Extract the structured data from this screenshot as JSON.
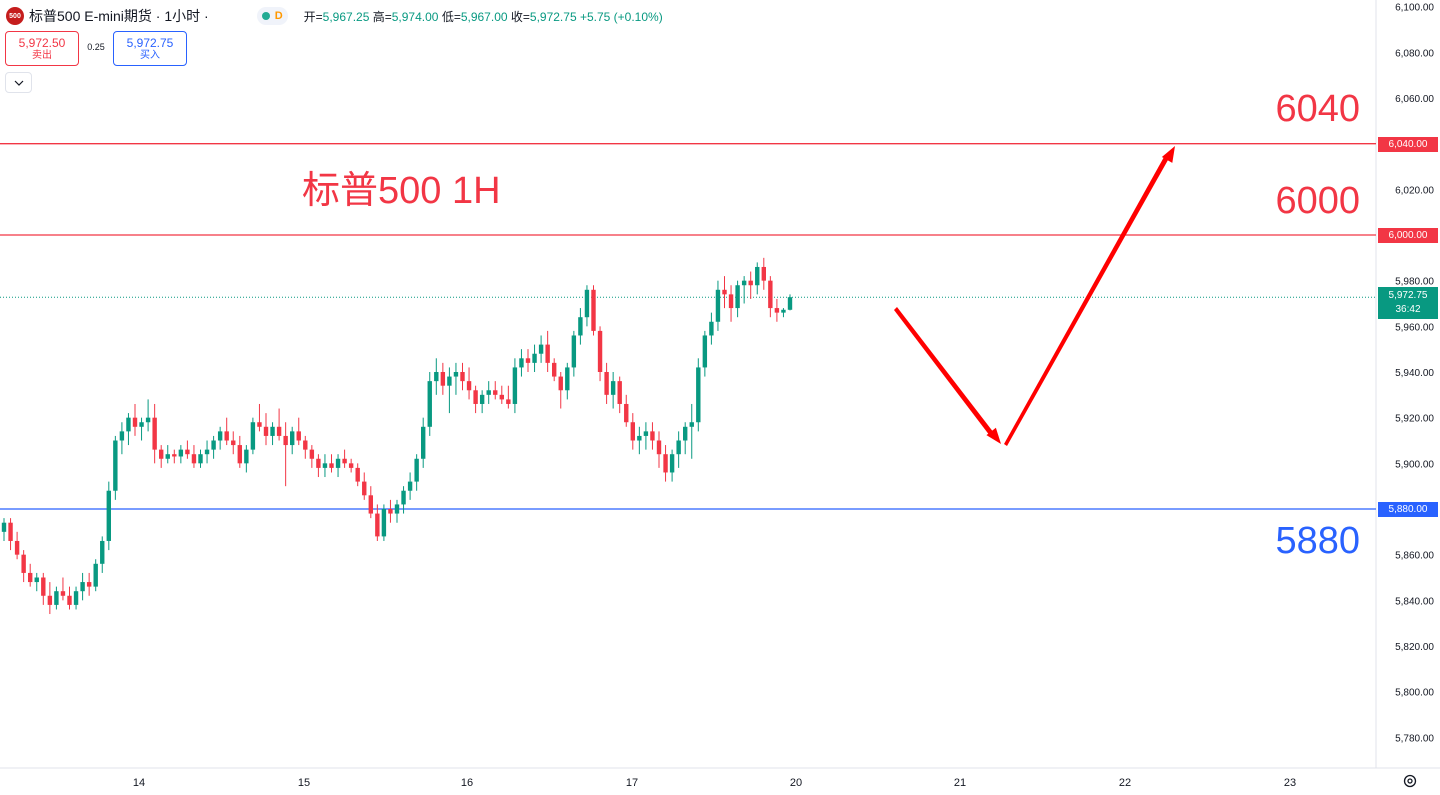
{
  "header": {
    "logo_text": "500",
    "symbol_title": "标普500 E-mini期货 · 1小时 ·",
    "status_letter": "D",
    "open_label": "开=",
    "open": "5,967.25",
    "high_label": "高=",
    "high": "5,974.00",
    "low_label": "低=",
    "low": "5,967.00",
    "close_label": "收=",
    "close": "5,972.75",
    "change": "+5.75 (+0.10%)"
  },
  "trade": {
    "sell_price": "5,972.50",
    "sell_label": "卖出",
    "spread": "0.25",
    "buy_price": "5,972.75",
    "buy_label": "买入"
  },
  "icons": {
    "collapse": "chevron-down-icon",
    "settings": "gear-icon",
    "arrows": "arrow-icon"
  },
  "colors": {
    "up": "#089981",
    "down": "#f23645",
    "resistance": "#f23645",
    "support": "#2962ff",
    "arrow": "#ff0000"
  },
  "annotations": {
    "title": "标普500 1H",
    "level_high": "6040",
    "level_mid": "6000",
    "level_low": "5880"
  },
  "price_tags": {
    "r2": "6,040.00",
    "r1": "6,000.00",
    "s1": "5,880.00",
    "current": "5,972.75",
    "countdown": "36:42"
  },
  "chart_data": {
    "type": "candlestick",
    "timeframe": "1H",
    "y_axis": {
      "range": [
        5770,
        6100
      ],
      "ticks": [
        6100,
        6080,
        6060,
        6040,
        6020,
        6000,
        5980,
        5960,
        5940,
        5920,
        5900,
        5880,
        5860,
        5840,
        5820,
        5800,
        5780
      ],
      "tick_labels": [
        "6,100.00",
        "6,080.00",
        "6,060.00",
        "6,040.00",
        "6,020.00",
        "6,000.00",
        "5,980.00",
        "5,960.00",
        "5,940.00",
        "5,920.00",
        "5,900.00",
        "5,880.00",
        "5,860.00",
        "5,840.00",
        "5,820.00",
        "5,800.00",
        "5,780.00"
      ]
    },
    "x_axis": {
      "labels": [
        "14",
        "15",
        "16",
        "17",
        "20",
        "21",
        "22",
        "23"
      ]
    },
    "horizontal_lines": [
      {
        "price": 6040,
        "color": "#f23645"
      },
      {
        "price": 6000,
        "color": "#f23645"
      },
      {
        "price": 5880,
        "color": "#2962ff"
      }
    ],
    "current_price": 5972.75,
    "candles": [
      [
        5870,
        5876,
        5866,
        5874
      ],
      [
        5874,
        5876,
        5862,
        5866
      ],
      [
        5866,
        5870,
        5858,
        5860
      ],
      [
        5860,
        5862,
        5848,
        5852
      ],
      [
        5852,
        5856,
        5846,
        5848
      ],
      [
        5848,
        5852,
        5844,
        5850
      ],
      [
        5850,
        5852,
        5838,
        5842
      ],
      [
        5842,
        5848,
        5834,
        5838
      ],
      [
        5838,
        5846,
        5836,
        5844
      ],
      [
        5844,
        5850,
        5840,
        5842
      ],
      [
        5842,
        5846,
        5836,
        5838
      ],
      [
        5838,
        5846,
        5836,
        5844
      ],
      [
        5844,
        5852,
        5840,
        5848
      ],
      [
        5848,
        5852,
        5842,
        5846
      ],
      [
        5846,
        5858,
        5844,
        5856
      ],
      [
        5856,
        5868,
        5852,
        5866
      ],
      [
        5866,
        5892,
        5862,
        5888
      ],
      [
        5888,
        5912,
        5884,
        5910
      ],
      [
        5910,
        5918,
        5904,
        5914
      ],
      [
        5914,
        5922,
        5908,
        5920
      ],
      [
        5920,
        5926,
        5912,
        5916
      ],
      [
        5916,
        5920,
        5910,
        5918
      ],
      [
        5918,
        5928,
        5914,
        5920
      ],
      [
        5920,
        5926,
        5900,
        5906
      ],
      [
        5906,
        5908,
        5898,
        5902
      ],
      [
        5902,
        5908,
        5900,
        5904
      ],
      [
        5904,
        5906,
        5900,
        5903
      ],
      [
        5903,
        5908,
        5900,
        5906
      ],
      [
        5906,
        5910,
        5902,
        5904
      ],
      [
        5904,
        5908,
        5898,
        5900
      ],
      [
        5900,
        5906,
        5898,
        5904
      ],
      [
        5904,
        5910,
        5900,
        5906
      ],
      [
        5906,
        5912,
        5902,
        5910
      ],
      [
        5910,
        5916,
        5906,
        5914
      ],
      [
        5914,
        5920,
        5908,
        5910
      ],
      [
        5910,
        5914,
        5904,
        5908
      ],
      [
        5908,
        5912,
        5898,
        5900
      ],
      [
        5900,
        5908,
        5896,
        5906
      ],
      [
        5906,
        5920,
        5904,
        5918
      ],
      [
        5918,
        5926,
        5914,
        5916
      ],
      [
        5916,
        5922,
        5908,
        5912
      ],
      [
        5912,
        5918,
        5908,
        5916
      ],
      [
        5916,
        5924,
        5910,
        5912
      ],
      [
        5912,
        5918,
        5890,
        5908
      ],
      [
        5908,
        5916,
        5904,
        5914
      ],
      [
        5914,
        5920,
        5908,
        5910
      ],
      [
        5910,
        5912,
        5902,
        5906
      ],
      [
        5906,
        5908,
        5898,
        5902
      ],
      [
        5902,
        5904,
        5894,
        5898
      ],
      [
        5898,
        5904,
        5894,
        5900
      ],
      [
        5900,
        5904,
        5896,
        5898
      ],
      [
        5898,
        5904,
        5894,
        5902
      ],
      [
        5902,
        5906,
        5898,
        5900
      ],
      [
        5900,
        5902,
        5896,
        5898
      ],
      [
        5898,
        5900,
        5890,
        5892
      ],
      [
        5892,
        5896,
        5884,
        5886
      ],
      [
        5886,
        5890,
        5876,
        5878
      ],
      [
        5878,
        5882,
        5866,
        5868
      ],
      [
        5868,
        5882,
        5866,
        5880
      ],
      [
        5880,
        5884,
        5874,
        5878
      ],
      [
        5878,
        5884,
        5874,
        5882
      ],
      [
        5882,
        5890,
        5878,
        5888
      ],
      [
        5888,
        5896,
        5884,
        5892
      ],
      [
        5892,
        5904,
        5888,
        5902
      ],
      [
        5902,
        5920,
        5898,
        5916
      ],
      [
        5916,
        5940,
        5912,
        5936
      ],
      [
        5936,
        5946,
        5930,
        5940
      ],
      [
        5940,
        5944,
        5930,
        5934
      ],
      [
        5934,
        5942,
        5922,
        5938
      ],
      [
        5938,
        5944,
        5930,
        5940
      ],
      [
        5940,
        5944,
        5932,
        5936
      ],
      [
        5936,
        5942,
        5928,
        5932
      ],
      [
        5932,
        5934,
        5922,
        5926
      ],
      [
        5926,
        5932,
        5922,
        5930
      ],
      [
        5930,
        5936,
        5926,
        5932
      ],
      [
        5932,
        5936,
        5928,
        5930
      ],
      [
        5930,
        5934,
        5926,
        5928
      ],
      [
        5928,
        5934,
        5924,
        5926
      ],
      [
        5926,
        5946,
        5922,
        5942
      ],
      [
        5942,
        5950,
        5938,
        5946
      ],
      [
        5946,
        5950,
        5940,
        5944
      ],
      [
        5944,
        5952,
        5940,
        5948
      ],
      [
        5948,
        5956,
        5944,
        5952
      ],
      [
        5952,
        5958,
        5940,
        5944
      ],
      [
        5944,
        5946,
        5936,
        5938
      ],
      [
        5938,
        5940,
        5924,
        5932
      ],
      [
        5932,
        5944,
        5928,
        5942
      ],
      [
        5942,
        5958,
        5938,
        5956
      ],
      [
        5956,
        5968,
        5952,
        5964
      ],
      [
        5964,
        5978,
        5960,
        5976
      ],
      [
        5976,
        5978,
        5956,
        5958
      ],
      [
        5958,
        5960,
        5936,
        5940
      ],
      [
        5940,
        5944,
        5926,
        5930
      ],
      [
        5930,
        5940,
        5924,
        5936
      ],
      [
        5936,
        5938,
        5922,
        5926
      ],
      [
        5926,
        5930,
        5916,
        5918
      ],
      [
        5918,
        5922,
        5906,
        5910
      ],
      [
        5910,
        5916,
        5904,
        5912
      ],
      [
        5912,
        5918,
        5906,
        5914
      ],
      [
        5914,
        5918,
        5906,
        5910
      ],
      [
        5910,
        5914,
        5898,
        5904
      ],
      [
        5904,
        5908,
        5892,
        5896
      ],
      [
        5896,
        5906,
        5892,
        5904
      ],
      [
        5904,
        5914,
        5898,
        5910
      ],
      [
        5910,
        5918,
        5904,
        5916
      ],
      [
        5916,
        5926,
        5902,
        5918
      ],
      [
        5918,
        5946,
        5914,
        5942
      ],
      [
        5942,
        5958,
        5938,
        5956
      ],
      [
        5956,
        5966,
        5952,
        5962
      ],
      [
        5962,
        5980,
        5958,
        5976
      ],
      [
        5976,
        5982,
        5968,
        5974
      ],
      [
        5974,
        5978,
        5962,
        5968
      ],
      [
        5968,
        5980,
        5964,
        5978
      ],
      [
        5978,
        5982,
        5970,
        5980
      ],
      [
        5980,
        5984,
        5972,
        5978
      ],
      [
        5978,
        5988,
        5974,
        5986
      ],
      [
        5986,
        5990,
        5976,
        5980
      ],
      [
        5980,
        5982,
        5964,
        5968
      ],
      [
        5968,
        5972,
        5962,
        5966
      ],
      [
        5966,
        5968,
        5964,
        5967.25
      ],
      [
        5967.25,
        5974,
        5967,
        5972.75
      ]
    ]
  }
}
